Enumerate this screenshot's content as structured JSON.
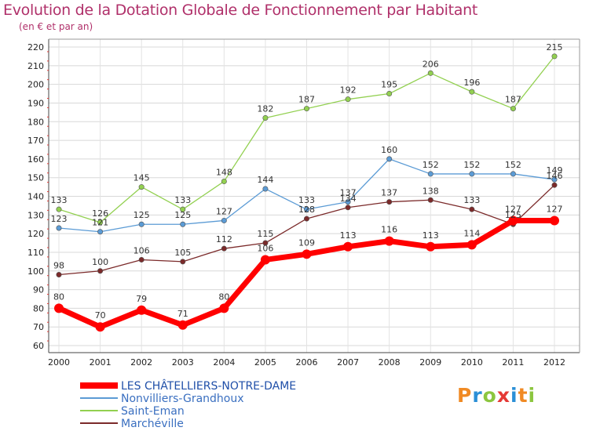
{
  "header": {
    "title": "Evolution de la Dotation Globale de Fonctionnement par Habitant",
    "subtitle": "(en € et par an)"
  },
  "brand": {
    "text": "Proxiti",
    "colors": [
      "#f08a24",
      "#2b8fd6",
      "#8cc63f",
      "#e53935",
      "#2b8fd6",
      "#f08a24",
      "#8cc63f"
    ]
  },
  "chart_data": {
    "type": "line",
    "x": [
      "2000",
      "2001",
      "2002",
      "2003",
      "2004",
      "2005",
      "2006",
      "2007",
      "2008",
      "2009",
      "2010",
      "2011",
      "2012"
    ],
    "ylim": [
      60,
      220
    ],
    "yticks": [
      60,
      70,
      80,
      90,
      100,
      110,
      120,
      130,
      140,
      150,
      160,
      170,
      180,
      190,
      200,
      210,
      220
    ],
    "grid": true,
    "legend_position": "bottom-left",
    "series": [
      {
        "name": "LES CHÂTELLIERS-NOTRE-DAME",
        "color": "#ff0000",
        "values": [
          80,
          70,
          79,
          71,
          80,
          106,
          109,
          113,
          116,
          113,
          114,
          127,
          127
        ]
      },
      {
        "name": "Nonvilliers-Grandhoux",
        "color": "#5b9bd5",
        "values": [
          123,
          121,
          125,
          125,
          127,
          144,
          133,
          137,
          160,
          152,
          152,
          152,
          149
        ]
      },
      {
        "name": "Saint-Eman",
        "color": "#92d050",
        "values": [
          133,
          126,
          145,
          133,
          148,
          182,
          187,
          192,
          195,
          206,
          196,
          187,
          215
        ]
      },
      {
        "name": "Marchéville",
        "color": "#7b2a2a",
        "values": [
          98,
          100,
          106,
          105,
          112,
          115,
          128,
          134,
          137,
          138,
          133,
          125,
          146
        ]
      }
    ]
  }
}
